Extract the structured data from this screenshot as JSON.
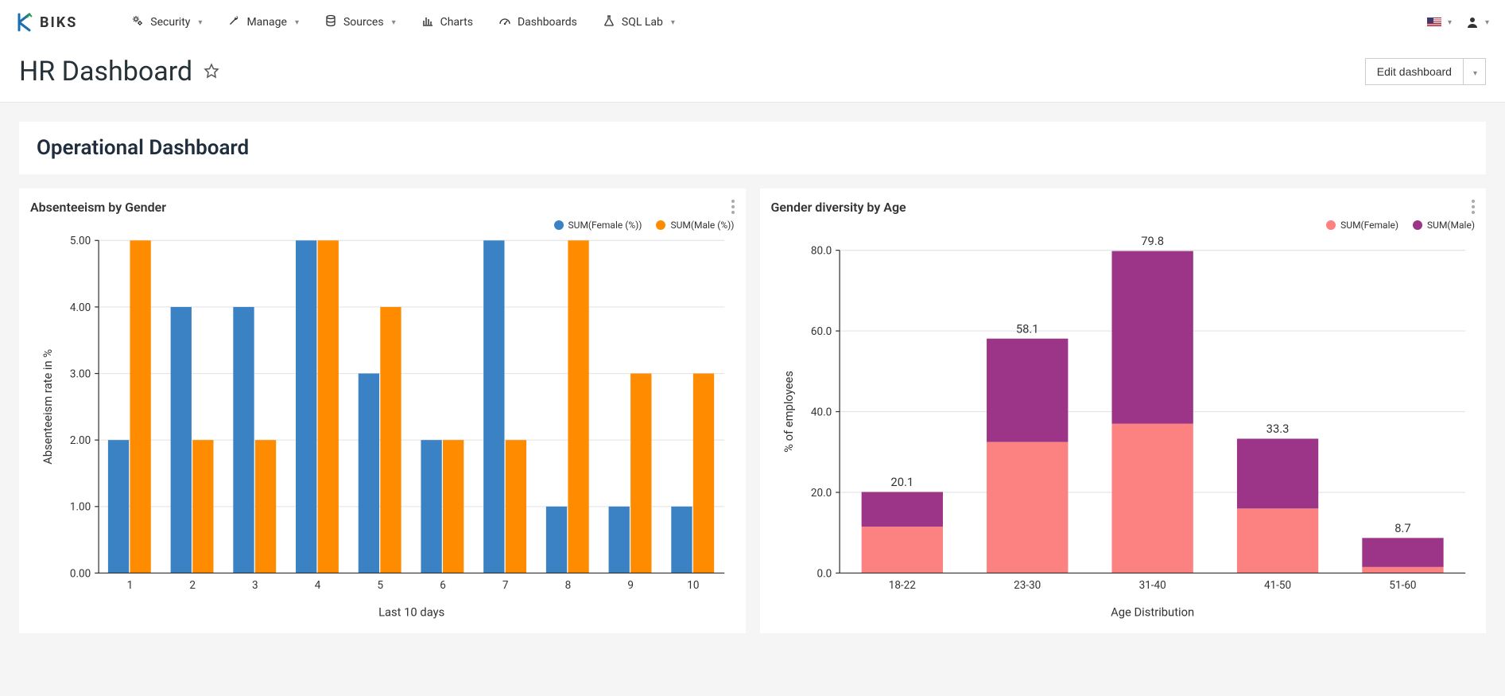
{
  "brand": {
    "name": "BIKS"
  },
  "nav": {
    "items": [
      {
        "label": "Security",
        "icon": "gears",
        "dropdown": true
      },
      {
        "label": "Manage",
        "icon": "wrench",
        "dropdown": true
      },
      {
        "label": "Sources",
        "icon": "database",
        "dropdown": true
      },
      {
        "label": "Charts",
        "icon": "bar-chart",
        "dropdown": false
      },
      {
        "label": "Dashboards",
        "icon": "tachometer",
        "dropdown": false
      },
      {
        "label": "SQL Lab",
        "icon": "flask",
        "dropdown": true
      }
    ]
  },
  "page": {
    "title": "HR Dashboard",
    "edit_button": "Edit dashboard",
    "section_title": "Operational Dashboard"
  },
  "chart1": {
    "type": "grouped-bar",
    "title": "Absenteeism by Gender",
    "xlabel": "Last 10 days",
    "ylabel": "Absenteeism rate in %",
    "ylim": [
      0,
      5
    ],
    "ytick_step": 1,
    "ytick_format": "0.00",
    "categories": [
      "1",
      "2",
      "3",
      "4",
      "5",
      "6",
      "7",
      "8",
      "9",
      "10"
    ],
    "series": [
      {
        "name": "SUM(Female (%))",
        "color": "#3b82c4",
        "values": [
          2,
          4,
          4,
          5,
          3,
          2,
          5,
          1,
          1,
          1
        ]
      },
      {
        "name": "SUM(Male (%))",
        "color": "#ff8c00",
        "values": [
          5,
          2,
          2,
          5,
          4,
          2,
          2,
          5,
          3,
          3
        ]
      }
    ],
    "bar_group_width": 0.7,
    "grid_color": "#e5e5e5",
    "background": "#ffffff"
  },
  "chart2": {
    "type": "stacked-bar",
    "title": "Gender diversity by Age",
    "xlabel": "Age Distribution",
    "ylabel": "% of employees",
    "ylim": [
      0,
      80
    ],
    "ytick_step": 20,
    "ytick_format": "0.0",
    "categories": [
      "18-22",
      "23-30",
      "31-40",
      "41-50",
      "51-60"
    ],
    "series": [
      {
        "name": "SUM(Female)",
        "color": "#fc8181",
        "values": [
          11.5,
          32.5,
          37.0,
          16.0,
          1.5
        ]
      },
      {
        "name": "SUM(Male)",
        "color": "#9c3587",
        "values": [
          8.6,
          25.6,
          42.8,
          17.3,
          7.2
        ]
      }
    ],
    "totals": [
      20.1,
      58.1,
      79.8,
      33.3,
      8.7
    ],
    "bar_width": 0.65,
    "grid_color": "#e5e5e5",
    "background": "#ffffff",
    "show_totals": true
  },
  "colors": {
    "text": "#333333",
    "page_bg": "#f5f5f5",
    "card_bg": "#ffffff"
  }
}
